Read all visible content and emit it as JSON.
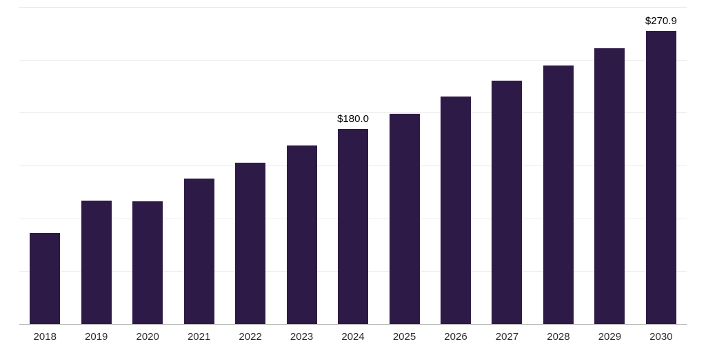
{
  "chart_data": {
    "type": "bar",
    "title": "",
    "xlabel": "",
    "ylabel": "",
    "categories": [
      "2018",
      "2019",
      "2020",
      "2021",
      "2022",
      "2023",
      "2024",
      "2025",
      "2026",
      "2027",
      "2028",
      "2029",
      "2030"
    ],
    "values": [
      84.0,
      114.0,
      113.5,
      134.5,
      149.0,
      165.0,
      180.0,
      194.5,
      210.0,
      225.0,
      239.0,
      255.0,
      270.9
    ],
    "annotations": [
      {
        "category": "2024",
        "text": "$180.0"
      },
      {
        "category": "2030",
        "text": "$270.9"
      }
    ],
    "bar_color": "#2e1a47",
    "ylim": [
      0,
      293
    ],
    "grid": "horizontal",
    "legend": "none"
  }
}
